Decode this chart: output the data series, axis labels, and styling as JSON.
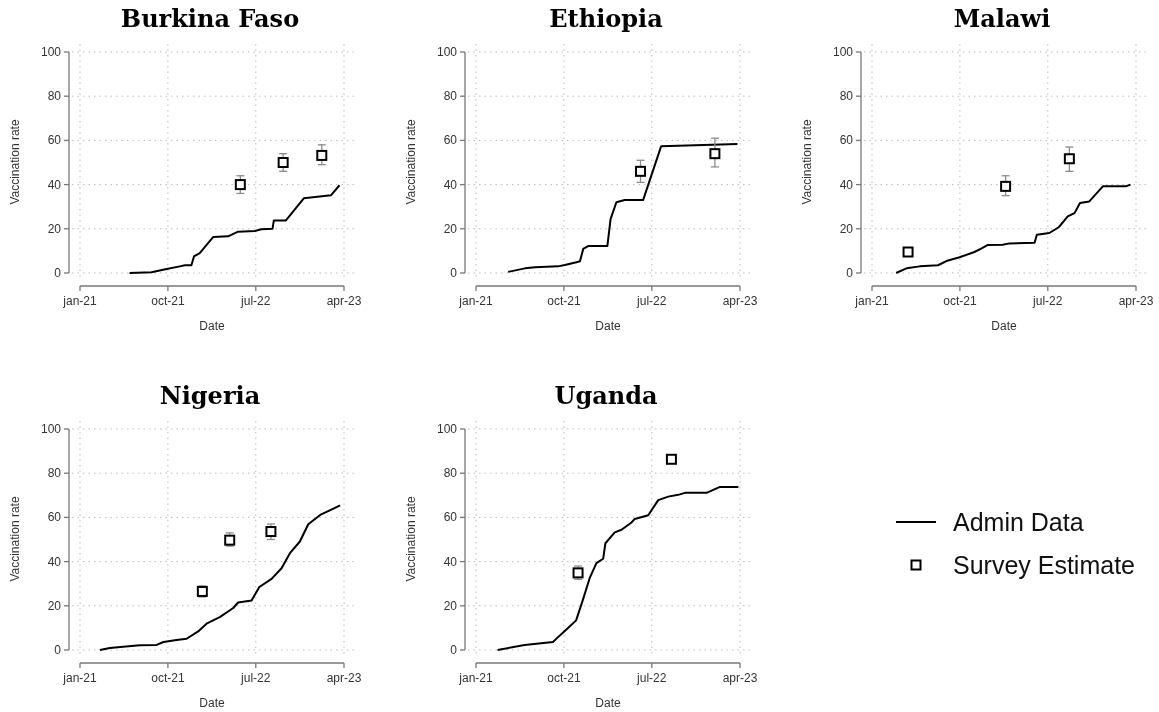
{
  "chart_data": [
    {
      "type": "line",
      "title": "Burkina Faso",
      "xlabel": "Date",
      "ylabel": "Vaccination rate",
      "xlim": [
        "2021-01-01",
        "2023-04-01"
      ],
      "xticks": [
        {
          "value": "2021-01-01",
          "label": "jan-21"
        },
        {
          "value": "2021-10-01",
          "label": "oct-21"
        },
        {
          "value": "2022-07-01",
          "label": "jul-22"
        },
        {
          "value": "2023-04-01",
          "label": "apr-23"
        }
      ],
      "ylim": [
        0,
        100
      ],
      "yticks": [
        0,
        20,
        40,
        60,
        80,
        100
      ],
      "grid": true,
      "legend": false,
      "series": [
        {
          "type": "line",
          "color": "#000000",
          "x": [
            "2021-06-04",
            "2021-08-11",
            "2021-09-27",
            "2021-11-07",
            "2021-11-23",
            "2021-12-13",
            "2021-12-21",
            "2022-01-08",
            "2022-02-19",
            "2022-04-06",
            "2022-05-07",
            "2022-06-28",
            "2022-07-18",
            "2022-08-22",
            "2022-08-26",
            "2022-10-02",
            "2022-11-27",
            "2023-02-20",
            "2023-03-18"
          ],
          "values": [
            0,
            0.3,
            1.8,
            3,
            3.5,
            3.5,
            7.5,
            9,
            16.3,
            16.6,
            18.7,
            19,
            19.8,
            20,
            23.7,
            23.7,
            33.8,
            35.2,
            39.7
          ]
        },
        {
          "type": "scatter",
          "marker": "square",
          "color": "#000000",
          "x": [
            "2022-05-14",
            "2022-09-24",
            "2023-01-22"
          ],
          "values": [
            40,
            50,
            53.2
          ],
          "errors": [
            [
              36,
              44
            ],
            [
              46,
              54
            ],
            [
              49,
              58
            ]
          ]
        }
      ]
    },
    {
      "type": "line",
      "title": "Ethiopia",
      "xlabel": "Date",
      "ylabel": "Vaccination rate",
      "xlim": [
        "2021-01-01",
        "2023-04-01"
      ],
      "xticks": [
        {
          "value": "2021-01-01",
          "label": "jan-21"
        },
        {
          "value": "2021-10-01",
          "label": "oct-21"
        },
        {
          "value": "2022-07-01",
          "label": "jul-22"
        },
        {
          "value": "2023-04-01",
          "label": "apr-23"
        }
      ],
      "ylim": [
        0,
        100
      ],
      "yticks": [
        0,
        20,
        40,
        60,
        80,
        100
      ],
      "grid": true,
      "legend": false,
      "series": [
        {
          "type": "line",
          "color": "#000000",
          "x": [
            "2021-04-11",
            "2021-06-02",
            "2021-07-03",
            "2021-09-13",
            "2021-10-04",
            "2021-11-12",
            "2021-11-20",
            "2021-11-30",
            "2021-12-15",
            "2022-02-13",
            "2022-02-23",
            "2022-03-13",
            "2022-04-08",
            "2022-06-04",
            "2022-07-30",
            "2023-03-24"
          ],
          "values": [
            0.5,
            2.1,
            2.6,
            3,
            3.6,
            5,
            5.3,
            10.9,
            12.2,
            12.2,
            24.4,
            32,
            33,
            33,
            57.3,
            58.4
          ]
        },
        {
          "type": "scatter",
          "marker": "square",
          "color": "#000000",
          "x": [
            "2022-05-27",
            "2023-01-13"
          ],
          "values": [
            46,
            54
          ],
          "errors": [
            [
              41,
              51
            ],
            [
              48,
              61
            ]
          ]
        }
      ]
    },
    {
      "type": "line",
      "title": "Malawi",
      "xlabel": "Date",
      "ylabel": "Vaccination rate",
      "xlim": [
        "2021-01-01",
        "2023-04-01"
      ],
      "xticks": [
        {
          "value": "2021-01-01",
          "label": "jan-21"
        },
        {
          "value": "2021-10-01",
          "label": "oct-21"
        },
        {
          "value": "2022-07-01",
          "label": "jul-22"
        },
        {
          "value": "2023-04-01",
          "label": "apr-23"
        }
      ],
      "ylim": [
        0,
        100
      ],
      "yticks": [
        0,
        20,
        40,
        60,
        80,
        100
      ],
      "grid": true,
      "legend": false,
      "series": [
        {
          "type": "line",
          "color": "#000000",
          "x": [
            "2021-03-17",
            "2021-04-18",
            "2021-05-29",
            "2021-07-25",
            "2021-08-20",
            "2021-09-30",
            "2021-11-15",
            "2021-12-06",
            "2021-12-27",
            "2022-02-11",
            "2022-03-04",
            "2022-05-21",
            "2022-05-28",
            "2022-07-06",
            "2022-08-04",
            "2022-09-01",
            "2022-09-22",
            "2022-10-09",
            "2022-11-07",
            "2022-12-19",
            "2023-02-28",
            "2023-03-15"
          ],
          "values": [
            0,
            2.1,
            3,
            3.5,
            5.4,
            7.1,
            9.5,
            11,
            12.7,
            12.8,
            13.4,
            13.7,
            17.3,
            18.1,
            20.7,
            25.6,
            27.1,
            31.7,
            32.4,
            39.2,
            39.2,
            40
          ]
        },
        {
          "type": "scatter",
          "marker": "square",
          "color": "#000000",
          "x": [
            "2021-04-23",
            "2022-02-20",
            "2022-09-06"
          ],
          "values": [
            9.5,
            39.2,
            51.7
          ],
          "errors": [
            [
              8,
              11
            ],
            [
              35,
              44
            ],
            [
              46,
              57
            ]
          ]
        }
      ]
    },
    {
      "type": "line",
      "title": "Nigeria",
      "xlabel": "Date",
      "ylabel": "Vaccination rate",
      "xlim": [
        "2021-01-01",
        "2023-04-01"
      ],
      "xticks": [
        {
          "value": "2021-01-01",
          "label": "jan-21"
        },
        {
          "value": "2021-10-01",
          "label": "oct-21"
        },
        {
          "value": "2022-07-01",
          "label": "jul-22"
        },
        {
          "value": "2023-04-01",
          "label": "apr-23"
        }
      ],
      "ylim": [
        0,
        100
      ],
      "yticks": [
        0,
        20,
        40,
        60,
        80,
        100
      ],
      "grid": true,
      "legend": false,
      "series": [
        {
          "type": "line",
          "color": "#000000",
          "x": [
            "2021-03-04",
            "2021-04-04",
            "2021-05-15",
            "2021-07-06",
            "2021-08-27",
            "2021-09-17",
            "2021-10-28",
            "2021-11-28",
            "2022-01-03",
            "2022-01-29",
            "2022-03-11",
            "2022-04-22",
            "2022-05-07",
            "2022-06-18",
            "2022-07-12",
            "2022-08-19",
            "2022-09-19",
            "2022-10-15",
            "2022-11-15",
            "2022-12-11",
            "2023-01-17",
            "2023-03-20"
          ],
          "values": [
            0,
            0.9,
            1.5,
            2.1,
            2.3,
            3.6,
            4.5,
            5.1,
            8.4,
            11.9,
            14.9,
            19,
            21.5,
            22.4,
            28.5,
            32.2,
            37,
            43.8,
            49.1,
            56.9,
            61.1,
            65.4
          ]
        },
        {
          "type": "scatter",
          "marker": "square",
          "color": "#000000",
          "x": [
            "2022-01-16",
            "2022-04-11",
            "2022-08-17"
          ],
          "values": [
            26.5,
            49.7,
            53.6
          ],
          "errors": [
            [
              24,
              29
            ],
            [
              47,
              53
            ],
            [
              50,
              57
            ]
          ]
        }
      ]
    },
    {
      "type": "line",
      "title": "Uganda",
      "xlabel": "Date",
      "ylabel": "Vaccination rate",
      "xlim": [
        "2021-01-01",
        "2023-04-01"
      ],
      "xticks": [
        {
          "value": "2021-01-01",
          "label": "jan-21"
        },
        {
          "value": "2021-10-01",
          "label": "oct-21"
        },
        {
          "value": "2022-07-01",
          "label": "jul-22"
        },
        {
          "value": "2023-04-01",
          "label": "apr-23"
        }
      ],
      "ylim": [
        0,
        100
      ],
      "yticks": [
        0,
        20,
        40,
        60,
        80,
        100
      ],
      "grid": true,
      "legend": "right",
      "series": [
        {
          "name": "Admin Data",
          "type": "line",
          "color": "#000000",
          "x": [
            "2021-03-09",
            "2021-06-01",
            "2021-08-28",
            "2021-09-12",
            "2021-10-08",
            "2021-11-08",
            "2021-11-29",
            "2021-12-20",
            "2022-01-10",
            "2022-01-31",
            "2022-02-07",
            "2022-03-08",
            "2022-03-29",
            "2022-04-29",
            "2022-05-09",
            "2022-06-20",
            "2022-07-21",
            "2022-08-21",
            "2022-09-21",
            "2022-10-12",
            "2022-12-18",
            "2023-01-29",
            "2023-03-27"
          ],
          "values": [
            0,
            2.3,
            3.6,
            5.7,
            9.2,
            13.4,
            22.7,
            32.5,
            39.3,
            41.3,
            48.3,
            53.2,
            54.4,
            57.7,
            59.3,
            61,
            67.8,
            69.4,
            70.2,
            71.1,
            71.1,
            73.8,
            73.8
          ]
        },
        {
          "name": "Survey Estimate",
          "type": "scatter",
          "marker": "square",
          "color": "#000000",
          "x": [
            "2021-11-14",
            "2022-08-31"
          ],
          "values": [
            34.9,
            86.3
          ],
          "errors": [
            [
              32,
              38
            ],
            [
              85,
              88
            ]
          ]
        }
      ]
    }
  ]
}
